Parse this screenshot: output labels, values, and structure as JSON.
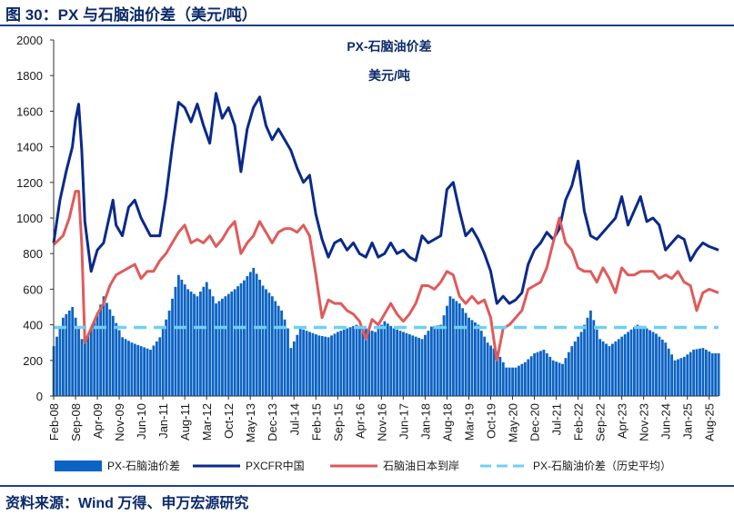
{
  "figure_title": "图 30：PX 与石脑油价差（美元/吨）",
  "source": "资料来源：Wind 万得、申万宏源研究",
  "colors": {
    "spread": "#0b63c4",
    "pxcfr": "#0a2a8a",
    "naphtha": "#e05a5a",
    "avg": "#6fd0f5"
  },
  "chart_data": {
    "type": "bar+line",
    "title": "PX-石脑油价差",
    "subtitle": "美元/吨",
    "xlabel": "",
    "ylabel": "",
    "ylim": [
      0,
      2000
    ],
    "yticks": [
      "0",
      "200",
      "400",
      "600",
      "800",
      "1000",
      "1200",
      "1400",
      "1600",
      "1800",
      "2000"
    ],
    "xticks": [
      "Feb-08",
      "Sep-08",
      "Apr-09",
      "Nov-09",
      "Jun-10",
      "Jan-11",
      "Aug-11",
      "Mar-12",
      "Oct-12",
      "May-13",
      "Dec-13",
      "Jul-14",
      "Feb-15",
      "Sep-15",
      "Apr-16",
      "Nov-16",
      "Jun-17",
      "Jan-18",
      "Aug-18",
      "Mar-19",
      "Oct-19",
      "May-20",
      "Dec-20",
      "Jul-21",
      "Feb-22",
      "Sep-22",
      "Apr-23",
      "Nov-23",
      "Jun-24",
      "Jan-25",
      "Aug-25"
    ],
    "x_start": "2008-02",
    "x_end": "2025-10",
    "legend": "bottom",
    "series": [
      {
        "name": "PX-石脑油价差",
        "type": "bar",
        "points": [
          [
            0,
            280
          ],
          [
            3,
            440
          ],
          [
            6,
            500
          ],
          [
            9,
            320
          ],
          [
            10,
            300
          ],
          [
            13,
            420
          ],
          [
            16,
            560
          ],
          [
            19,
            450
          ],
          [
            22,
            330
          ],
          [
            25,
            300
          ],
          [
            28,
            280
          ],
          [
            31,
            260
          ],
          [
            34,
            330
          ],
          [
            37,
            480
          ],
          [
            40,
            680
          ],
          [
            43,
            600
          ],
          [
            46,
            560
          ],
          [
            49,
            640
          ],
          [
            52,
            520
          ],
          [
            55,
            560
          ],
          [
            58,
            600
          ],
          [
            61,
            650
          ],
          [
            64,
            720
          ],
          [
            67,
            620
          ],
          [
            70,
            560
          ],
          [
            73,
            480
          ],
          [
            75,
            380
          ],
          [
            76,
            270
          ],
          [
            79,
            380
          ],
          [
            82,
            360
          ],
          [
            85,
            340
          ],
          [
            88,
            330
          ],
          [
            91,
            360
          ],
          [
            94,
            380
          ],
          [
            97,
            400
          ],
          [
            100,
            380
          ],
          [
            103,
            360
          ],
          [
            106,
            420
          ],
          [
            109,
            380
          ],
          [
            112,
            360
          ],
          [
            115,
            340
          ],
          [
            118,
            320
          ],
          [
            121,
            390
          ],
          [
            124,
            400
          ],
          [
            127,
            560
          ],
          [
            130,
            520
          ],
          [
            133,
            440
          ],
          [
            136,
            400
          ],
          [
            139,
            300
          ],
          [
            142,
            250
          ],
          [
            145,
            160
          ],
          [
            148,
            160
          ],
          [
            151,
            190
          ],
          [
            154,
            240
          ],
          [
            157,
            260
          ],
          [
            160,
            200
          ],
          [
            163,
            180
          ],
          [
            166,
            280
          ],
          [
            169,
            360
          ],
          [
            172,
            480
          ],
          [
            175,
            320
          ],
          [
            178,
            280
          ],
          [
            181,
            320
          ],
          [
            184,
            360
          ],
          [
            187,
            400
          ],
          [
            190,
            380
          ],
          [
            193,
            350
          ],
          [
            196,
            300
          ],
          [
            199,
            200
          ],
          [
            202,
            220
          ],
          [
            205,
            260
          ],
          [
            208,
            270
          ],
          [
            211,
            240
          ],
          [
            213,
            240
          ]
        ]
      },
      {
        "name": "PXCFR中国",
        "type": "line",
        "points": [
          [
            0,
            860
          ],
          [
            2,
            1100
          ],
          [
            4,
            1260
          ],
          [
            6,
            1400
          ],
          [
            7,
            1550
          ],
          [
            8,
            1640
          ],
          [
            9,
            1380
          ],
          [
            10,
            980
          ],
          [
            12,
            700
          ],
          [
            14,
            820
          ],
          [
            16,
            860
          ],
          [
            18,
            1020
          ],
          [
            19,
            1100
          ],
          [
            20,
            960
          ],
          [
            22,
            900
          ],
          [
            24,
            1060
          ],
          [
            26,
            1100
          ],
          [
            28,
            1000
          ],
          [
            31,
            900
          ],
          [
            34,
            900
          ],
          [
            36,
            1120
          ],
          [
            38,
            1400
          ],
          [
            40,
            1650
          ],
          [
            42,
            1620
          ],
          [
            44,
            1540
          ],
          [
            46,
            1640
          ],
          [
            48,
            1520
          ],
          [
            50,
            1420
          ],
          [
            52,
            1700
          ],
          [
            54,
            1560
          ],
          [
            56,
            1620
          ],
          [
            58,
            1520
          ],
          [
            60,
            1260
          ],
          [
            62,
            1500
          ],
          [
            64,
            1620
          ],
          [
            66,
            1680
          ],
          [
            68,
            1520
          ],
          [
            70,
            1440
          ],
          [
            72,
            1500
          ],
          [
            74,
            1440
          ],
          [
            76,
            1380
          ],
          [
            78,
            1280
          ],
          [
            80,
            1200
          ],
          [
            82,
            1240
          ],
          [
            84,
            1020
          ],
          [
            86,
            880
          ],
          [
            88,
            780
          ],
          [
            90,
            860
          ],
          [
            92,
            880
          ],
          [
            94,
            820
          ],
          [
            96,
            860
          ],
          [
            98,
            800
          ],
          [
            100,
            780
          ],
          [
            102,
            860
          ],
          [
            104,
            780
          ],
          [
            106,
            800
          ],
          [
            108,
            860
          ],
          [
            110,
            800
          ],
          [
            112,
            820
          ],
          [
            114,
            780
          ],
          [
            116,
            760
          ],
          [
            118,
            900
          ],
          [
            120,
            860
          ],
          [
            122,
            880
          ],
          [
            124,
            900
          ],
          [
            126,
            1160
          ],
          [
            128,
            1200
          ],
          [
            130,
            1040
          ],
          [
            132,
            900
          ],
          [
            134,
            940
          ],
          [
            136,
            880
          ],
          [
            138,
            800
          ],
          [
            140,
            700
          ],
          [
            142,
            520
          ],
          [
            144,
            560
          ],
          [
            146,
            520
          ],
          [
            148,
            540
          ],
          [
            150,
            580
          ],
          [
            152,
            740
          ],
          [
            154,
            820
          ],
          [
            156,
            860
          ],
          [
            158,
            920
          ],
          [
            160,
            880
          ],
          [
            162,
            940
          ],
          [
            164,
            1100
          ],
          [
            166,
            1180
          ],
          [
            168,
            1320
          ],
          [
            170,
            1040
          ],
          [
            172,
            900
          ],
          [
            174,
            880
          ],
          [
            176,
            920
          ],
          [
            178,
            960
          ],
          [
            180,
            1000
          ],
          [
            182,
            1120
          ],
          [
            184,
            960
          ],
          [
            186,
            1040
          ],
          [
            188,
            1120
          ],
          [
            190,
            980
          ],
          [
            192,
            1000
          ],
          [
            194,
            960
          ],
          [
            196,
            820
          ],
          [
            198,
            860
          ],
          [
            200,
            900
          ],
          [
            202,
            880
          ],
          [
            204,
            760
          ],
          [
            206,
            820
          ],
          [
            208,
            860
          ],
          [
            210,
            840
          ],
          [
            213,
            820
          ]
        ]
      },
      {
        "name": "石脑油日本到岸",
        "type": "line",
        "points": [
          [
            0,
            850
          ],
          [
            3,
            900
          ],
          [
            5,
            1000
          ],
          [
            7,
            1150
          ],
          [
            8,
            1150
          ],
          [
            9,
            850
          ],
          [
            10,
            300
          ],
          [
            12,
            380
          ],
          [
            14,
            460
          ],
          [
            16,
            520
          ],
          [
            18,
            620
          ],
          [
            20,
            680
          ],
          [
            22,
            700
          ],
          [
            24,
            720
          ],
          [
            26,
            740
          ],
          [
            28,
            660
          ],
          [
            30,
            700
          ],
          [
            32,
            700
          ],
          [
            34,
            760
          ],
          [
            36,
            800
          ],
          [
            38,
            860
          ],
          [
            40,
            920
          ],
          [
            42,
            960
          ],
          [
            44,
            860
          ],
          [
            46,
            880
          ],
          [
            48,
            860
          ],
          [
            50,
            900
          ],
          [
            52,
            840
          ],
          [
            54,
            880
          ],
          [
            56,
            940
          ],
          [
            58,
            980
          ],
          [
            60,
            800
          ],
          [
            62,
            860
          ],
          [
            64,
            900
          ],
          [
            66,
            980
          ],
          [
            68,
            920
          ],
          [
            70,
            860
          ],
          [
            72,
            920
          ],
          [
            74,
            940
          ],
          [
            76,
            940
          ],
          [
            78,
            920
          ],
          [
            80,
            960
          ],
          [
            82,
            900
          ],
          [
            84,
            680
          ],
          [
            86,
            440
          ],
          [
            88,
            540
          ],
          [
            90,
            520
          ],
          [
            92,
            520
          ],
          [
            94,
            480
          ],
          [
            96,
            460
          ],
          [
            98,
            420
          ],
          [
            100,
            320
          ],
          [
            102,
            430
          ],
          [
            104,
            400
          ],
          [
            106,
            460
          ],
          [
            108,
            520
          ],
          [
            110,
            460
          ],
          [
            112,
            420
          ],
          [
            114,
            460
          ],
          [
            116,
            520
          ],
          [
            118,
            620
          ],
          [
            120,
            620
          ],
          [
            122,
            600
          ],
          [
            124,
            640
          ],
          [
            126,
            700
          ],
          [
            128,
            680
          ],
          [
            130,
            560
          ],
          [
            132,
            520
          ],
          [
            134,
            560
          ],
          [
            136,
            520
          ],
          [
            138,
            540
          ],
          [
            140,
            440
          ],
          [
            142,
            200
          ],
          [
            144,
            380
          ],
          [
            146,
            400
          ],
          [
            148,
            440
          ],
          [
            150,
            480
          ],
          [
            152,
            600
          ],
          [
            154,
            620
          ],
          [
            156,
            640
          ],
          [
            158,
            720
          ],
          [
            160,
            860
          ],
          [
            162,
            1000
          ],
          [
            164,
            860
          ],
          [
            166,
            820
          ],
          [
            168,
            720
          ],
          [
            170,
            700
          ],
          [
            172,
            700
          ],
          [
            174,
            640
          ],
          [
            176,
            720
          ],
          [
            178,
            660
          ],
          [
            180,
            580
          ],
          [
            182,
            720
          ],
          [
            184,
            680
          ],
          [
            186,
            680
          ],
          [
            188,
            700
          ],
          [
            190,
            700
          ],
          [
            192,
            700
          ],
          [
            194,
            660
          ],
          [
            196,
            680
          ],
          [
            198,
            660
          ],
          [
            200,
            700
          ],
          [
            202,
            640
          ],
          [
            204,
            620
          ],
          [
            206,
            480
          ],
          [
            208,
            580
          ],
          [
            210,
            600
          ],
          [
            213,
            580
          ]
        ]
      },
      {
        "name": "PX-石脑油价差（历史平均）",
        "type": "line",
        "dashed": true,
        "points": [
          [
            0,
            385
          ],
          [
            213,
            385
          ]
        ]
      }
    ]
  }
}
